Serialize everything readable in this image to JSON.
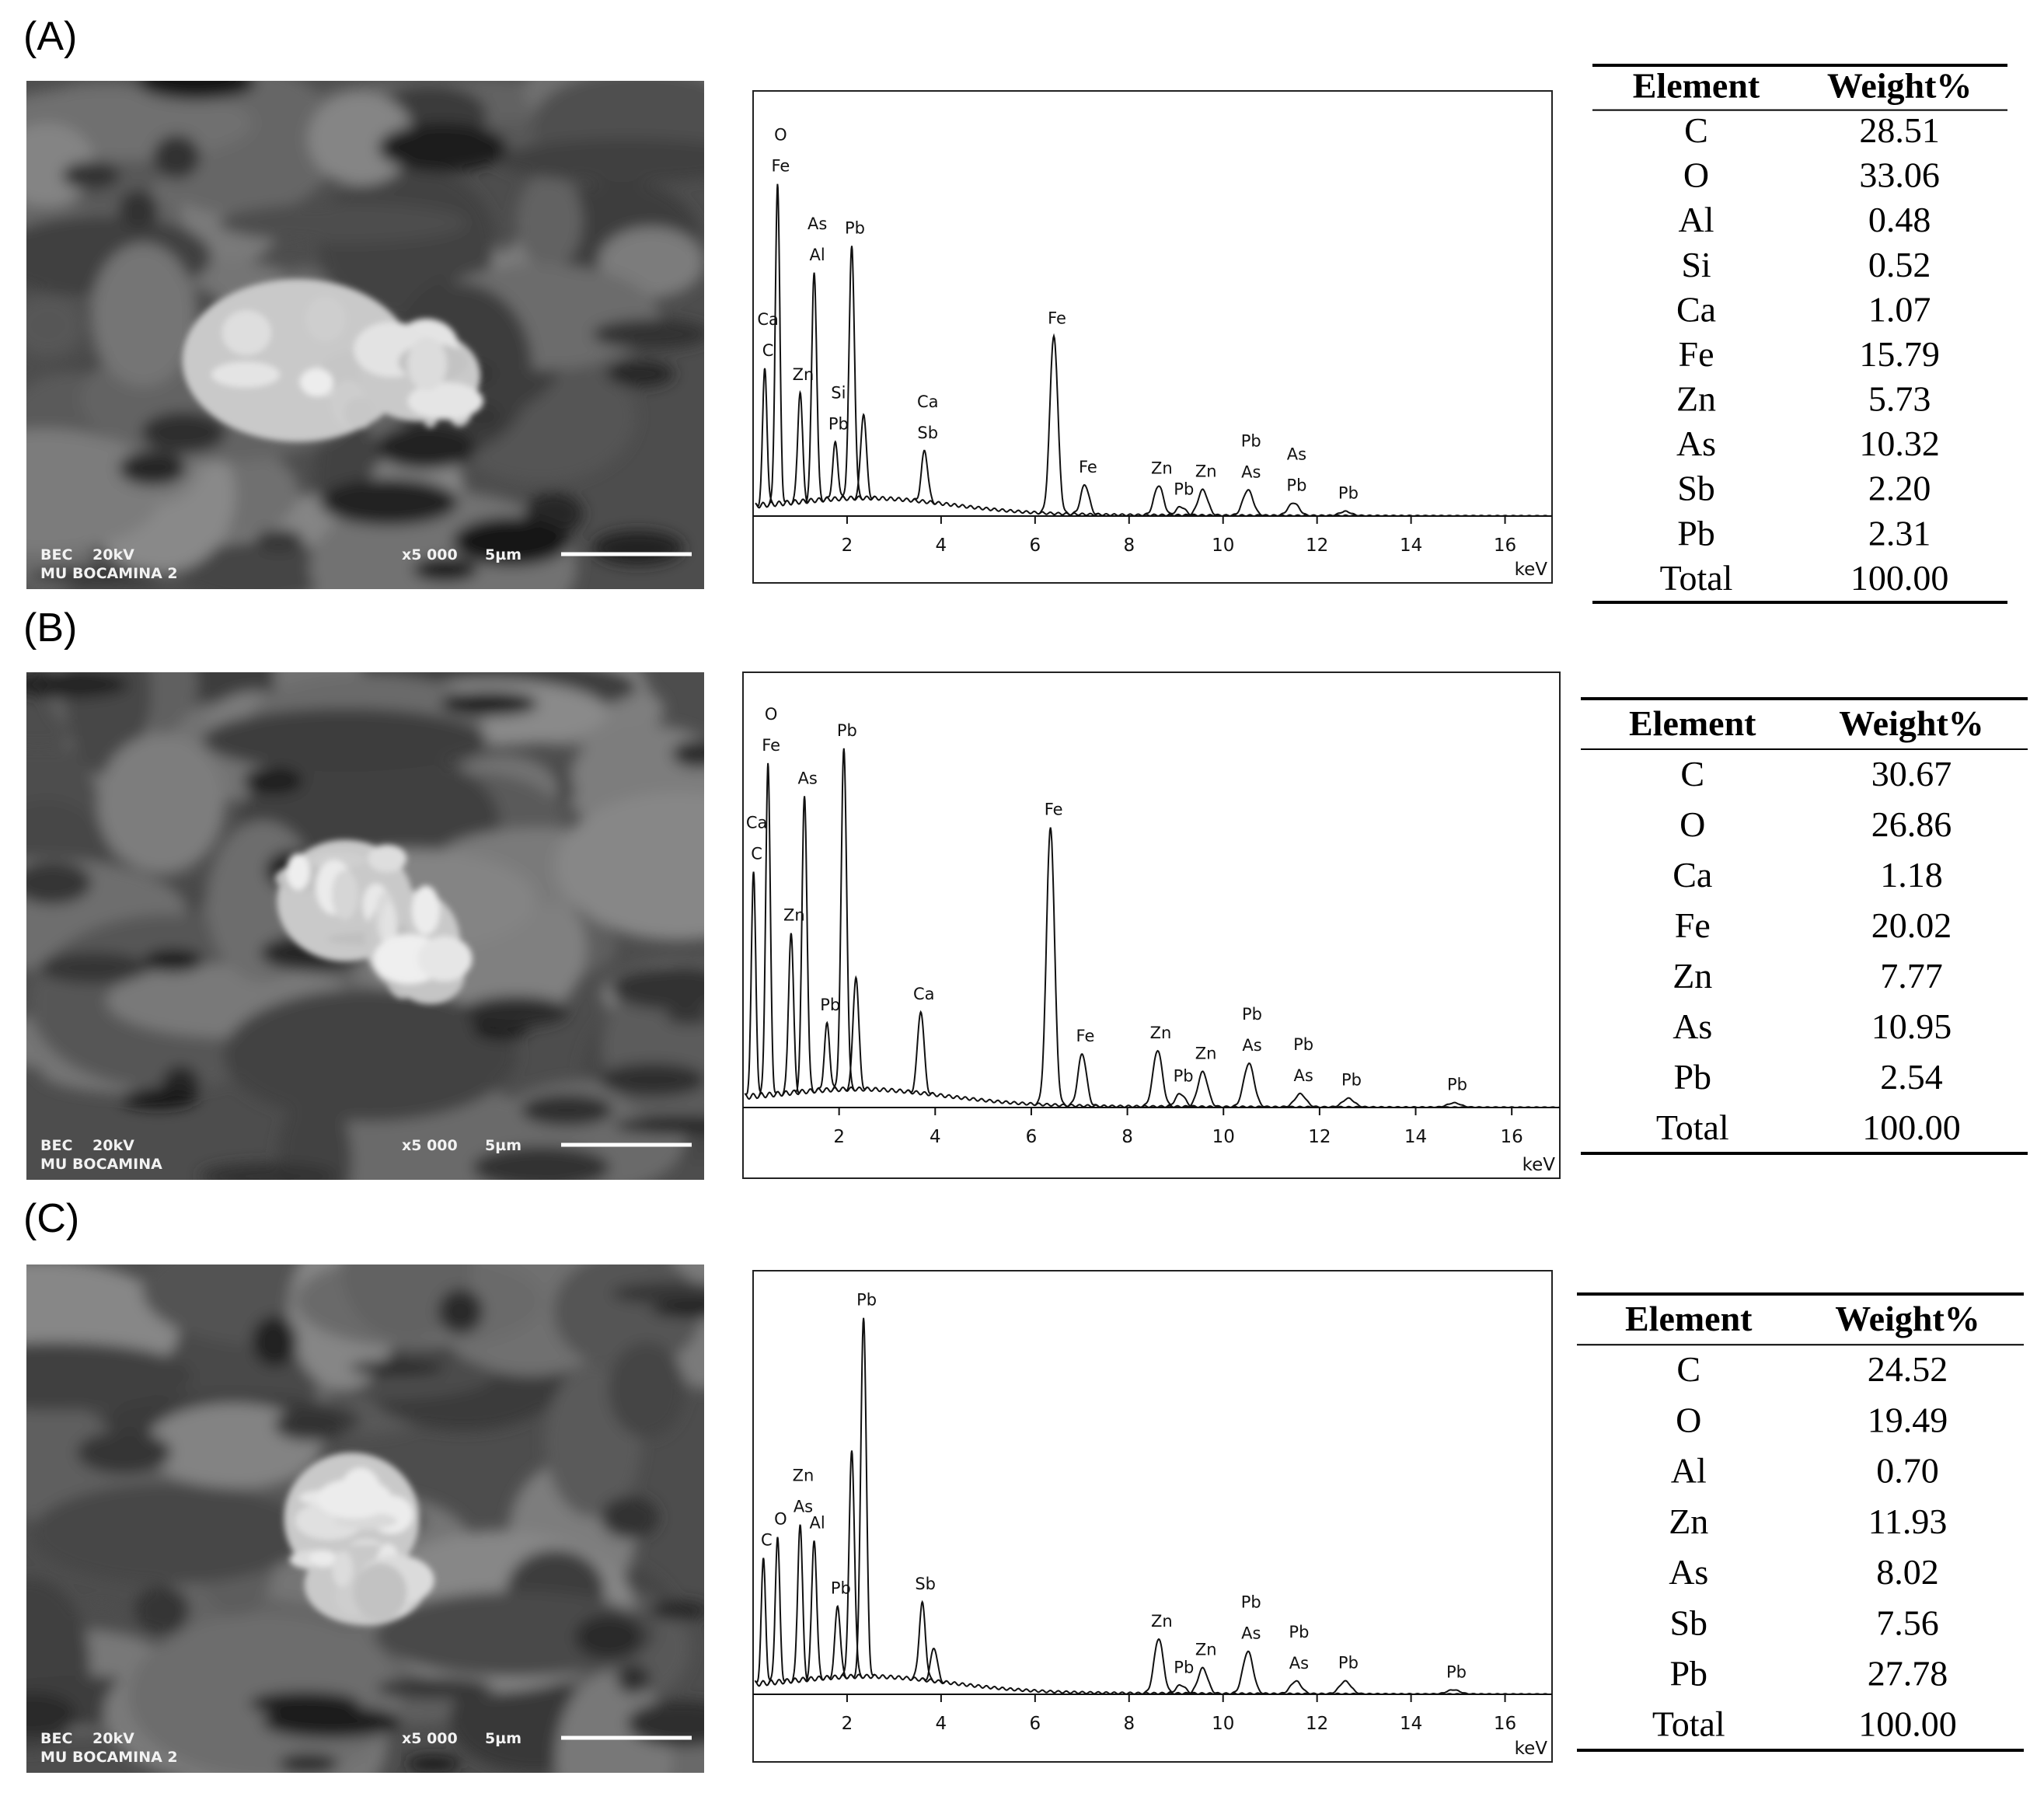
{
  "panels": [
    {
      "label": "(A)",
      "image": {
        "detector": "BEC",
        "voltage": "20kV",
        "sample": "MU BOCAMINA 2",
        "magnification": "x5 000",
        "scale": "5µm"
      },
      "spectrum": {
        "type": "line",
        "xlabel": "keV",
        "xlim": [
          0,
          17
        ],
        "xticks": [
          2,
          4,
          6,
          8,
          10,
          12,
          14,
          16
        ],
        "ylim": [
          0,
          100
        ],
        "peaks": [
          {
            "x": 0.25,
            "height": 32,
            "labels": [
              "Ca",
              "C"
            ]
          },
          {
            "x": 0.52,
            "height": 75,
            "labels": [
              "O",
              "Fe"
            ]
          },
          {
            "x": 1.0,
            "height": 26,
            "labels": [
              "Zn"
            ]
          },
          {
            "x": 1.3,
            "height": 54,
            "labels": [
              "As",
              "Al"
            ]
          },
          {
            "x": 1.75,
            "height": 13,
            "labels": [
              "Si",
              "Pb"
            ]
          },
          {
            "x": 2.1,
            "height": 59,
            "labels": [
              "Pb"
            ]
          },
          {
            "x": 2.35,
            "height": 20,
            "labels": []
          },
          {
            "x": 3.65,
            "height": 12,
            "labels": [
              "Ca",
              "Sb"
            ]
          },
          {
            "x": 6.4,
            "height": 42,
            "labels": [
              "Fe"
            ]
          },
          {
            "x": 7.06,
            "height": 7,
            "labels": [
              "Fe"
            ]
          },
          {
            "x": 8.63,
            "height": 7,
            "labels": [
              "Zn"
            ]
          },
          {
            "x": 9.1,
            "height": 2,
            "labels": [
              "Pb"
            ]
          },
          {
            "x": 9.57,
            "height": 6,
            "labels": [
              "Zn"
            ]
          },
          {
            "x": 10.53,
            "height": 6,
            "labels": [
              "Pb",
              "As"
            ]
          },
          {
            "x": 11.5,
            "height": 3,
            "labels": [
              "As",
              "Pb"
            ]
          },
          {
            "x": 12.6,
            "height": 1,
            "labels": [
              "Pb"
            ]
          }
        ]
      },
      "table": {
        "columns": [
          "Element",
          "Weight%"
        ],
        "rows": [
          [
            "C",
            "28.51"
          ],
          [
            "O",
            "33.06"
          ],
          [
            "Al",
            "0.48"
          ],
          [
            "Si",
            "0.52"
          ],
          [
            "Ca",
            "1.07"
          ],
          [
            "Fe",
            "15.79"
          ],
          [
            "Zn",
            "5.73"
          ],
          [
            "As",
            "10.32"
          ],
          [
            "Sb",
            "2.20"
          ],
          [
            "Pb",
            "2.31"
          ],
          [
            "Total",
            "100.00"
          ]
        ]
      }
    },
    {
      "label": "(B)",
      "image": {
        "detector": "BEC",
        "voltage": "20kV",
        "sample": "MU BOCAMINA",
        "magnification": "x5 000",
        "scale": "5µm"
      },
      "spectrum": {
        "type": "line",
        "xlabel": "keV",
        "xlim": [
          0,
          17
        ],
        "xticks": [
          2,
          4,
          6,
          8,
          10,
          12,
          14,
          16
        ],
        "ylim": [
          0,
          100
        ],
        "peaks": [
          {
            "x": 0.22,
            "height": 51,
            "labels": [
              "Ca",
              "C"
            ]
          },
          {
            "x": 0.52,
            "height": 76,
            "labels": [
              "O",
              "Fe"
            ]
          },
          {
            "x": 1.0,
            "height": 37,
            "labels": [
              "Zn"
            ]
          },
          {
            "x": 1.28,
            "height": 68,
            "labels": [
              "As"
            ]
          },
          {
            "x": 1.75,
            "height": 15,
            "labels": [
              "Pb"
            ]
          },
          {
            "x": 2.1,
            "height": 78,
            "labels": [
              "Pb"
            ]
          },
          {
            "x": 2.35,
            "height": 26,
            "labels": []
          },
          {
            "x": 3.7,
            "height": 19,
            "labels": [
              "Ca"
            ]
          },
          {
            "x": 6.4,
            "height": 64,
            "labels": [
              "Fe"
            ]
          },
          {
            "x": 7.06,
            "height": 12,
            "labels": [
              "Fe"
            ]
          },
          {
            "x": 8.63,
            "height": 13,
            "labels": [
              "Zn"
            ]
          },
          {
            "x": 9.1,
            "height": 3,
            "labels": [
              "Pb"
            ]
          },
          {
            "x": 9.57,
            "height": 8,
            "labels": [
              "Zn"
            ]
          },
          {
            "x": 10.53,
            "height": 10,
            "labels": [
              "Pb",
              "As"
            ]
          },
          {
            "x": 11.6,
            "height": 3,
            "labels": [
              "Pb",
              "As"
            ]
          },
          {
            "x": 12.6,
            "height": 2,
            "labels": [
              "Pb"
            ]
          },
          {
            "x": 14.8,
            "height": 1,
            "labels": [
              "Pb"
            ]
          }
        ]
      },
      "table": {
        "columns": [
          "Element",
          "Weight%"
        ],
        "rows": [
          [
            "C",
            "30.67"
          ],
          [
            "O",
            "26.86"
          ],
          [
            "Ca",
            "1.18"
          ],
          [
            "Fe",
            "20.02"
          ],
          [
            "Zn",
            "7.77"
          ],
          [
            "As",
            "10.95"
          ],
          [
            "Pb",
            "2.54"
          ],
          [
            "Total",
            "100.00"
          ]
        ]
      }
    },
    {
      "label": "(C)",
      "image": {
        "detector": "BEC",
        "voltage": "20kV",
        "sample": "MU BOCAMINA 2",
        "magnification": "x5 000",
        "scale": "5µm"
      },
      "spectrum": {
        "type": "line",
        "xlabel": "keV",
        "xlim": [
          0,
          17
        ],
        "xticks": [
          2,
          4,
          6,
          8,
          10,
          12,
          14,
          16
        ],
        "ylim": [
          0,
          100
        ],
        "peaks": [
          {
            "x": 0.22,
            "height": 29,
            "labels": [
              "C"
            ]
          },
          {
            "x": 0.52,
            "height": 34,
            "labels": [
              "O"
            ]
          },
          {
            "x": 1.0,
            "height": 37,
            "labels": [
              "Zn",
              "As"
            ]
          },
          {
            "x": 1.3,
            "height": 33,
            "labels": [
              "Al"
            ]
          },
          {
            "x": 1.8,
            "height": 17,
            "labels": [
              "Pb"
            ]
          },
          {
            "x": 2.1,
            "height": 53,
            "labels": []
          },
          {
            "x": 2.35,
            "height": 85,
            "labels": [
              "Pb"
            ]
          },
          {
            "x": 3.6,
            "height": 18,
            "labels": [
              "Sb"
            ]
          },
          {
            "x": 3.85,
            "height": 8,
            "labels": []
          },
          {
            "x": 8.63,
            "height": 13,
            "labels": [
              "Zn"
            ]
          },
          {
            "x": 9.1,
            "height": 2,
            "labels": [
              "Pb"
            ]
          },
          {
            "x": 9.57,
            "height": 6,
            "labels": [
              "Zn"
            ]
          },
          {
            "x": 10.53,
            "height": 10,
            "labels": [
              "Pb",
              "As"
            ]
          },
          {
            "x": 11.55,
            "height": 3,
            "labels": [
              "Pb",
              "As"
            ]
          },
          {
            "x": 12.6,
            "height": 3,
            "labels": [
              "Pb"
            ]
          },
          {
            "x": 14.9,
            "height": 1,
            "labels": [
              "Pb"
            ]
          }
        ]
      },
      "table": {
        "columns": [
          "Element",
          "Weight%"
        ],
        "rows": [
          [
            "C",
            "24.52"
          ],
          [
            "O",
            "19.49"
          ],
          [
            "Al",
            "0.70"
          ],
          [
            "Zn",
            "11.93"
          ],
          [
            "As",
            "8.02"
          ],
          [
            "Sb",
            "7.56"
          ],
          [
            "Pb",
            "27.78"
          ],
          [
            "Total",
            "100.00"
          ]
        ]
      }
    }
  ]
}
